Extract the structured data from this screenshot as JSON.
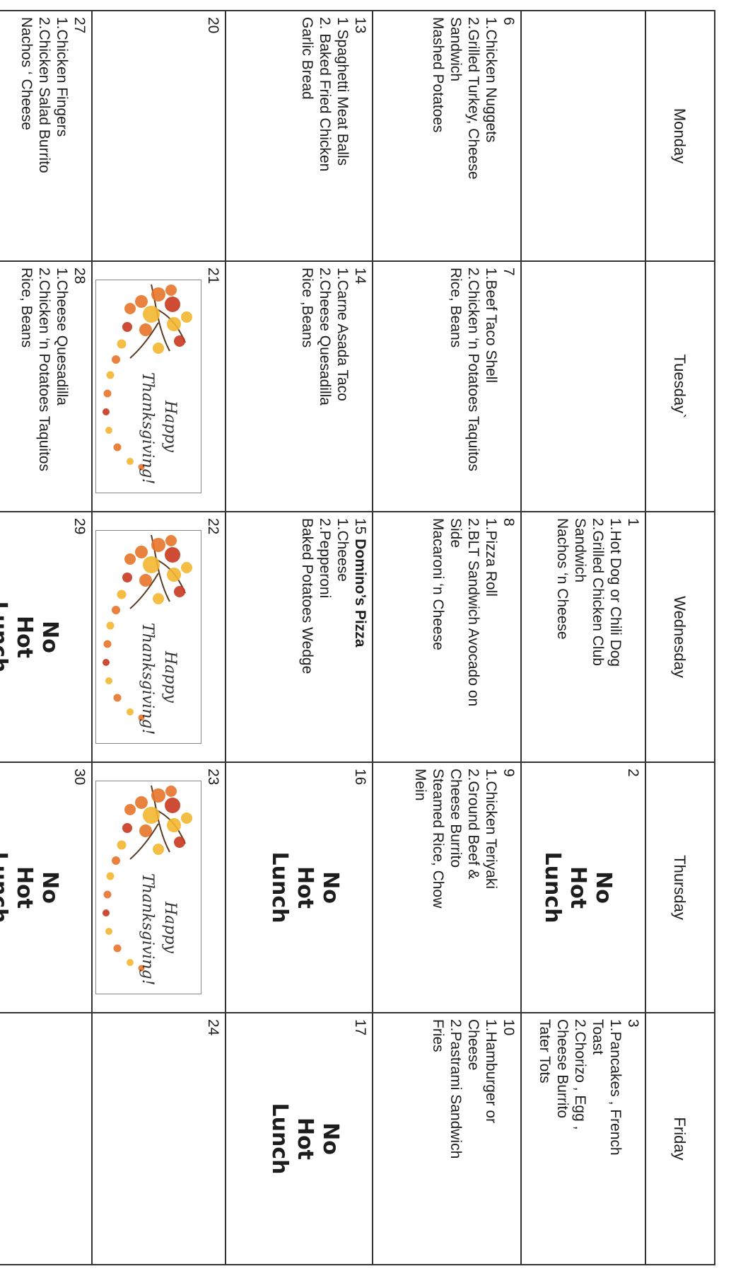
{
  "days": [
    "Monday",
    "Tuesday`",
    "Wednesday",
    "Thursday",
    "Friday"
  ],
  "weeks": [
    {
      "mon": {
        "num": "",
        "lines": []
      },
      "tue": {
        "num": "",
        "lines": []
      },
      "wed": {
        "num": "1",
        "lines": [
          "1.Hot Dog or Chili Dog",
          "2.Grilled Chicken Club",
          "Sandwich",
          "Nachos ‘n Cheese"
        ]
      },
      "thu": {
        "num": "2",
        "no_lunch": [
          "No",
          "Hot",
          "Lunch"
        ]
      },
      "fri": {
        "num": "3",
        "lines": [
          "1.Pancakes , French",
          "Toast",
          "2.Chorizo , Egg ,",
          "Cheese Burrito",
          "Tater Tots"
        ]
      }
    },
    {
      "mon": {
        "num": "6",
        "lines": [
          "1.Chicken Nuggets",
          "2.Grilled Turkey, Cheese",
          "Sandwich",
          "Mashed Potatoes"
        ]
      },
      "tue": {
        "num": "7",
        "lines": [
          "1.Beef Taco Shell",
          "2.Chicken ‘n Potatoes Taquitos",
          "Rice, Beans"
        ]
      },
      "wed": {
        "num": "8",
        "lines": [
          "1.Pizza Roll",
          "2.BLT Sandwich Avocado on",
          "Side",
          "Macaroni ‘n Cheese"
        ]
      },
      "thu": {
        "num": "9",
        "lines": [
          "1.Chicken Teriyaki",
          "2.Ground Beef &",
          "Cheese Burrito",
          "Steamed Rice, Chow",
          "Mein"
        ]
      },
      "fri": {
        "num": "10",
        "lines": [
          "1.Hamburger or",
          "Cheese",
          "2.Pastrami Sandwich",
          "Fries"
        ]
      }
    },
    {
      "mon": {
        "num": "13",
        "lines": [
          "1 Spaghetti Meat Balls",
          "2. Baked Fried Chicken",
          "Garlic Bread"
        ]
      },
      "tue": {
        "num": "14",
        "lines": [
          "1.Carne Asada Taco",
          "2.Cheese Quesadilla",
          "Rice ,Beans"
        ]
      },
      "wed": {
        "num": "15",
        "title": "Domino’s Pizza",
        "lines": [
          "1.Cheese",
          "2.Pepperoni",
          "Baked Potatoes Wedge"
        ]
      },
      "thu": {
        "num": "16",
        "no_lunch": [
          "No",
          "Hot",
          "Lunch"
        ]
      },
      "fri": {
        "num": "17",
        "no_lunch": [
          "No",
          "Hot",
          "Lunch"
        ]
      }
    },
    {
      "mon": {
        "num": "20",
        "lines": []
      },
      "tue": {
        "num": "21",
        "image": "Happy Thanksgiving!"
      },
      "wed": {
        "num": "22",
        "image": "Happy Thanksgiving!"
      },
      "thu": {
        "num": "23",
        "image": "Happy Thanksgiving!"
      },
      "fri": {
        "num": "24",
        "lines": []
      }
    },
    {
      "mon": {
        "num": "27",
        "lines": [
          "1.Chicken Fingers",
          "2.Chicken Salad Burrito",
          "Nachos ‘ Cheese"
        ]
      },
      "tue": {
        "num": "28",
        "lines": [
          "1.Cheese Quesadilla",
          "2.Chicken ‘n Potatoes Taquitos",
          "Rice, Beans"
        ]
      },
      "wed": {
        "num": "29",
        "no_lunch": [
          "No",
          "Hot",
          "Lunch"
        ]
      },
      "thu": {
        "num": "30",
        "no_lunch": [
          "No",
          "Hot",
          "Lunch"
        ]
      },
      "fri": {
        "num": "",
        "lines": []
      }
    }
  ],
  "thanks_text": [
    "Happy",
    "Thanksgiving!"
  ],
  "colors": {
    "leaf_orange": "#e8742a",
    "leaf_red": "#c9371f",
    "leaf_yellow": "#f3b62f",
    "branch": "#5a3a22",
    "grid": "#333333"
  }
}
